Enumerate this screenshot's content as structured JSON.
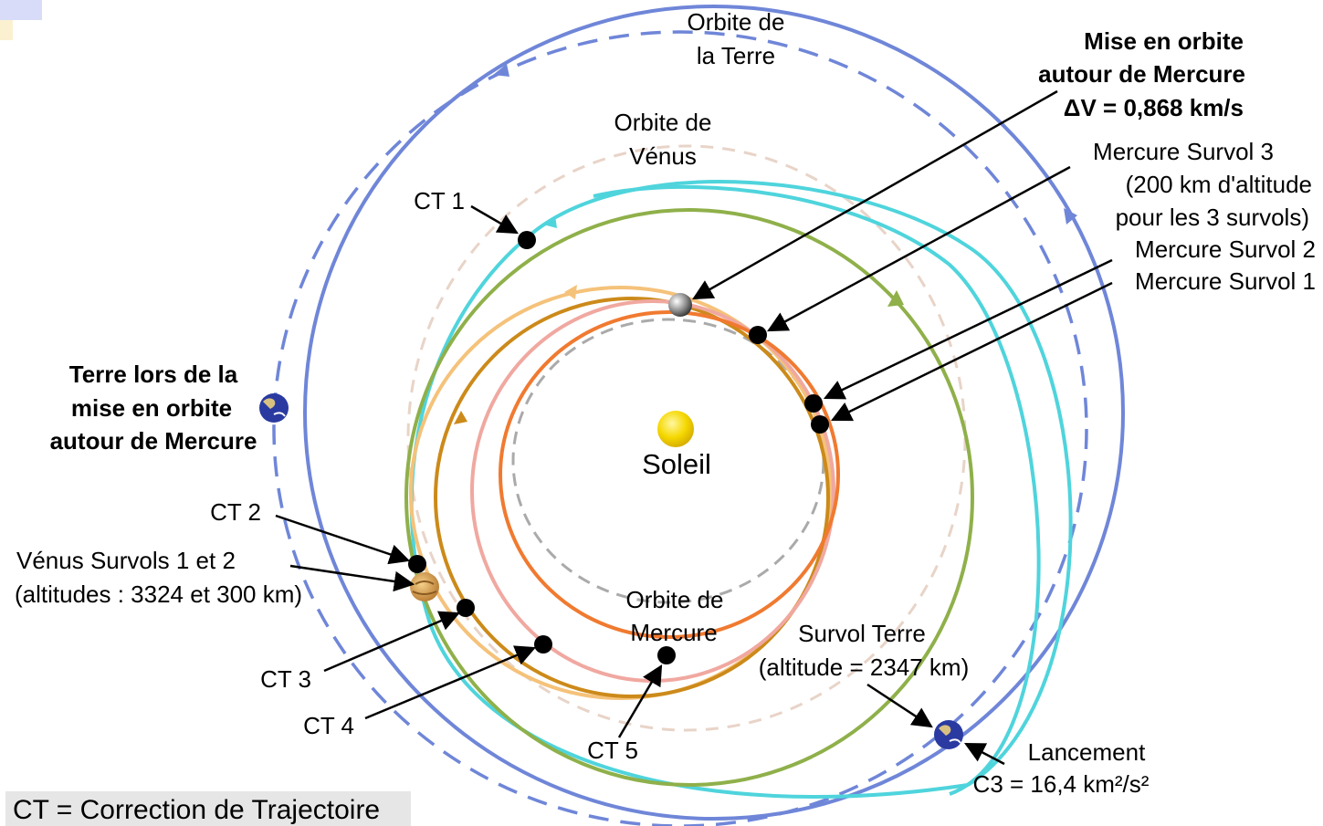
{
  "labels": {
    "earth_orbit": [
      "Orbite de",
      "la Terre"
    ],
    "venus_orbit": [
      "Orbite de",
      "Vénus"
    ],
    "mercury_orbit": [
      "Orbite de",
      "Mercure"
    ],
    "sun": "Soleil",
    "mercury_insertion": [
      "Mise en orbite",
      "autour de Mercure",
      "ΔV = 0,868 km/s"
    ],
    "mercury_flyby_3": [
      "Mercure Survol 3",
      "(200 km d'altitude",
      "pour les 3 survols)"
    ],
    "mercury_flyby_2": "Mercure Survol 2",
    "mercury_flyby_1": "Mercure Survol 1",
    "earth_at_insertion": [
      "Terre lors de la",
      "mise en orbite",
      "autour de Mercure"
    ],
    "ct1": "CT 1",
    "ct2": "CT 2",
    "ct3": "CT 3",
    "ct4": "CT 4",
    "ct5": "CT 5",
    "venus_flybys": [
      "Vénus Survols 1 et 2",
      "(altitudes : 3324 et 300 km)"
    ],
    "earth_flyby": [
      "Survol Terre",
      "(altitude = 2347 km)"
    ],
    "launch": [
      "Lancement",
      "C3 = 16,4 km²/s²"
    ],
    "legend": "CT = Correction de Trajectoire"
  },
  "colors": {
    "earth_orbit": "#6f86d8",
    "venus_orbit": "#e8d4c8",
    "mercury_orbit": "#aaaaaa",
    "trajectory_1": "#4fd4dc",
    "trajectory_2": "#8fb04a",
    "trajectory_3": "#f5c27a",
    "trajectory_4": "#cc8a1a",
    "trajectory_5": "#f0a8a0",
    "trajectory_6": "#f07a30",
    "sun": "#f5d800",
    "venus": "#d8a050",
    "mercury": "#888888",
    "earth": "#2a3aa0"
  }
}
